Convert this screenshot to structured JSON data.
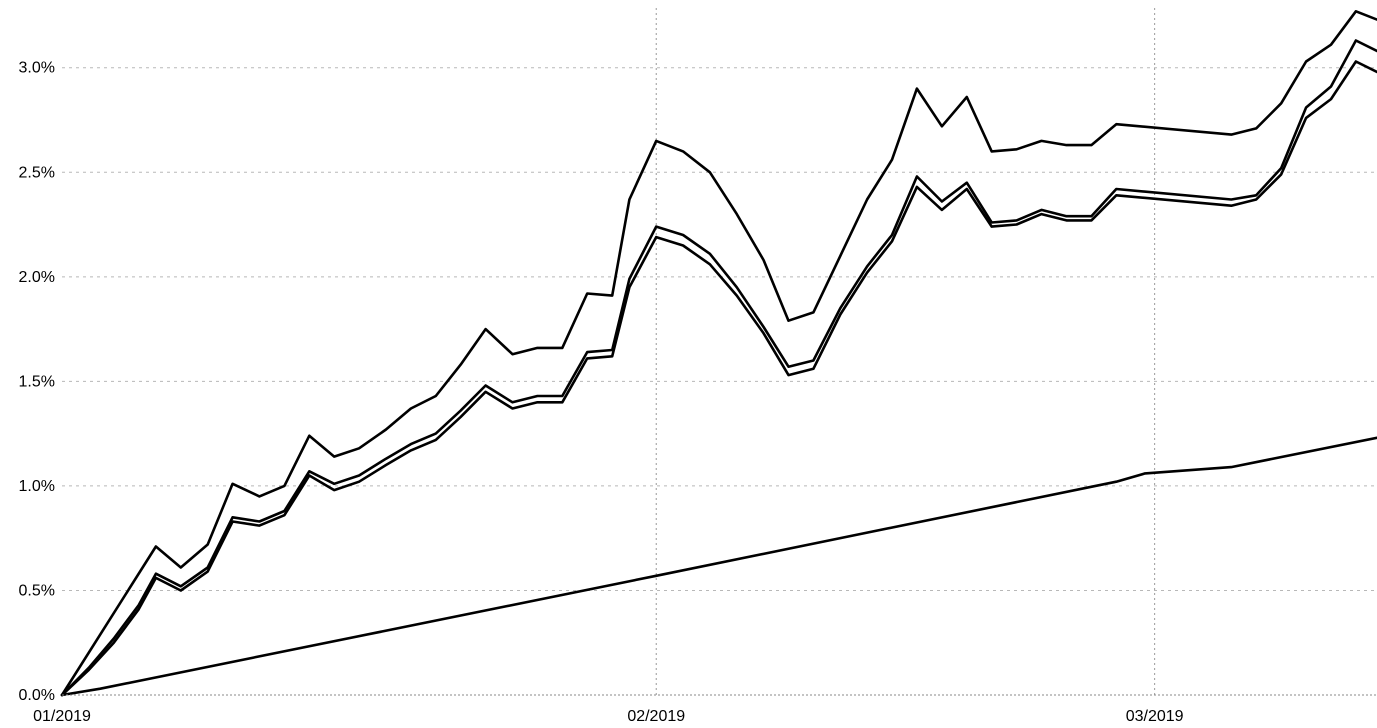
{
  "chart_data": {
    "type": "line",
    "title": "",
    "xlabel": "",
    "ylabel": "",
    "x_ticks": [
      {
        "label": "01/2019",
        "x": 0
      },
      {
        "label": "02/2019",
        "x": 31
      },
      {
        "label": "03/2019",
        "x": 57
      }
    ],
    "y_ticks": [
      {
        "label": "0.0%",
        "value": 0.0
      },
      {
        "label": "0.5%",
        "value": 0.5
      },
      {
        "label": "1.0%",
        "value": 1.0
      },
      {
        "label": "1.5%",
        "value": 1.5
      },
      {
        "label": "2.0%",
        "value": 2.0
      },
      {
        "label": "2.5%",
        "value": 2.5
      },
      {
        "label": "3.0%",
        "value": 3.0
      }
    ],
    "xlim": [
      0,
      68.6
    ],
    "ylim": [
      0,
      3.3
    ],
    "grid": true,
    "legend": "none",
    "series": [
      {
        "color": "#000000",
        "points": [
          [
            0,
            0
          ],
          [
            4.9,
            0.71
          ],
          [
            6.2,
            0.61
          ],
          [
            7.6,
            0.72
          ],
          [
            8.9,
            1.01
          ],
          [
            10.3,
            0.95
          ],
          [
            11.6,
            1.0
          ],
          [
            12.9,
            1.24
          ],
          [
            14.2,
            1.14
          ],
          [
            15.5,
            1.18
          ],
          [
            16.9,
            1.27
          ],
          [
            18.2,
            1.37
          ],
          [
            19.5,
            1.43
          ],
          [
            20.8,
            1.58
          ],
          [
            22.1,
            1.75
          ],
          [
            23.5,
            1.63
          ],
          [
            24.8,
            1.66
          ],
          [
            26.1,
            1.66
          ],
          [
            27.4,
            1.92
          ],
          [
            28.7,
            1.91
          ],
          [
            29.6,
            2.37
          ],
          [
            31,
            2.65
          ],
          [
            32.4,
            2.6
          ],
          [
            33.8,
            2.5
          ],
          [
            35.2,
            2.3
          ],
          [
            36.6,
            2.08
          ],
          [
            37.9,
            1.79
          ],
          [
            39.2,
            1.83
          ],
          [
            40.6,
            2.1
          ],
          [
            42,
            2.37
          ],
          [
            43.3,
            2.56
          ],
          [
            44.6,
            2.9
          ],
          [
            45.9,
            2.72
          ],
          [
            47.2,
            2.86
          ],
          [
            48.5,
            2.6
          ],
          [
            49.8,
            2.61
          ],
          [
            51.1,
            2.65
          ],
          [
            52.4,
            2.63
          ],
          [
            53.7,
            2.63
          ],
          [
            55,
            2.73
          ],
          [
            61,
            2.68
          ],
          [
            62.3,
            2.71
          ],
          [
            63.6,
            2.83
          ],
          [
            64.9,
            3.03
          ],
          [
            66.2,
            3.11
          ],
          [
            67.5,
            3.27
          ],
          [
            68.6,
            3.23
          ]
        ]
      },
      {
        "color": "#000000",
        "points": [
          [
            0,
            0
          ],
          [
            1.4,
            0.12
          ],
          [
            2.7,
            0.25
          ],
          [
            4,
            0.41
          ],
          [
            4.9,
            0.56
          ],
          [
            6.2,
            0.5
          ],
          [
            7.6,
            0.59
          ],
          [
            8.9,
            0.83
          ],
          [
            10.3,
            0.81
          ],
          [
            11.6,
            0.86
          ],
          [
            12.9,
            1.05
          ],
          [
            14.2,
            0.98
          ],
          [
            15.5,
            1.02
          ],
          [
            16.9,
            1.1
          ],
          [
            18.2,
            1.17
          ],
          [
            19.5,
            1.22
          ],
          [
            20.8,
            1.33
          ],
          [
            22.1,
            1.45
          ],
          [
            23.5,
            1.37
          ],
          [
            24.8,
            1.4
          ],
          [
            26.1,
            1.4
          ],
          [
            27.4,
            1.61
          ],
          [
            28.7,
            1.62
          ],
          [
            29.6,
            1.95
          ],
          [
            31,
            2.19
          ],
          [
            32.4,
            2.15
          ],
          [
            33.8,
            2.06
          ],
          [
            35.2,
            1.91
          ],
          [
            36.6,
            1.73
          ],
          [
            37.9,
            1.53
          ],
          [
            39.2,
            1.56
          ],
          [
            40.6,
            1.82
          ],
          [
            42,
            2.02
          ],
          [
            43.3,
            2.17
          ],
          [
            44.6,
            2.43
          ],
          [
            45.9,
            2.32
          ],
          [
            47.2,
            2.42
          ],
          [
            48.5,
            2.24
          ],
          [
            49.8,
            2.25
          ],
          [
            51.1,
            2.3
          ],
          [
            52.4,
            2.27
          ],
          [
            53.7,
            2.27
          ],
          [
            55,
            2.39
          ],
          [
            61,
            2.34
          ],
          [
            62.3,
            2.37
          ],
          [
            63.6,
            2.49
          ],
          [
            64.9,
            2.76
          ],
          [
            66.2,
            2.85
          ],
          [
            67.5,
            3.03
          ],
          [
            68.6,
            2.98
          ]
        ]
      },
      {
        "color": "#000000",
        "points": [
          [
            0,
            0
          ],
          [
            1.4,
            0.13
          ],
          [
            2.7,
            0.27
          ],
          [
            4,
            0.43
          ],
          [
            4.9,
            0.58
          ],
          [
            6.2,
            0.52
          ],
          [
            7.6,
            0.61
          ],
          [
            8.9,
            0.85
          ],
          [
            10.3,
            0.83
          ],
          [
            11.6,
            0.88
          ],
          [
            12.9,
            1.07
          ],
          [
            14.2,
            1.01
          ],
          [
            15.5,
            1.05
          ],
          [
            16.9,
            1.13
          ],
          [
            18.2,
            1.2
          ],
          [
            19.5,
            1.25
          ],
          [
            20.8,
            1.36
          ],
          [
            22.1,
            1.48
          ],
          [
            23.5,
            1.4
          ],
          [
            24.8,
            1.43
          ],
          [
            26.1,
            1.43
          ],
          [
            27.4,
            1.64
          ],
          [
            28.7,
            1.65
          ],
          [
            29.6,
            1.99
          ],
          [
            31,
            2.24
          ],
          [
            32.4,
            2.2
          ],
          [
            33.8,
            2.11
          ],
          [
            35.2,
            1.95
          ],
          [
            36.6,
            1.76
          ],
          [
            37.9,
            1.57
          ],
          [
            39.2,
            1.6
          ],
          [
            40.6,
            1.85
          ],
          [
            42,
            2.05
          ],
          [
            43.3,
            2.2
          ],
          [
            44.6,
            2.48
          ],
          [
            45.9,
            2.36
          ],
          [
            47.2,
            2.45
          ],
          [
            48.5,
            2.26
          ],
          [
            49.8,
            2.27
          ],
          [
            51.1,
            2.32
          ],
          [
            52.4,
            2.29
          ],
          [
            53.7,
            2.29
          ],
          [
            55,
            2.42
          ],
          [
            61,
            2.37
          ],
          [
            62.3,
            2.39
          ],
          [
            63.6,
            2.52
          ],
          [
            64.9,
            2.81
          ],
          [
            66.2,
            2.91
          ],
          [
            67.5,
            3.13
          ],
          [
            68.6,
            3.08
          ]
        ]
      },
      {
        "color": "#000000",
        "points": [
          [
            0,
            0
          ],
          [
            2,
            0.03
          ],
          [
            31,
            0.57
          ],
          [
            55,
            1.02
          ],
          [
            56.5,
            1.06
          ],
          [
            61,
            1.09
          ],
          [
            68.6,
            1.23
          ]
        ]
      }
    ]
  }
}
